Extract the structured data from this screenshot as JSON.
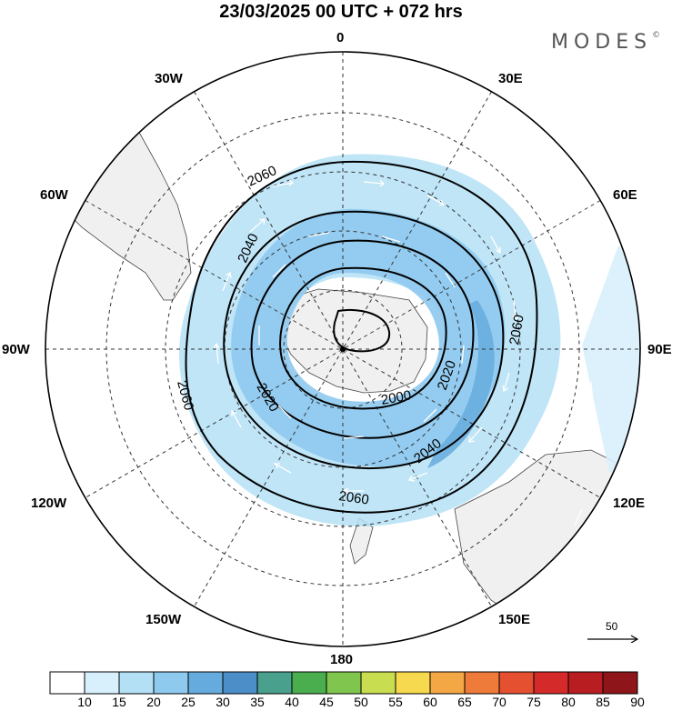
{
  "title": "23/03/2025  00 UTC  + 072 hrs",
  "brand": {
    "name": "MODES",
    "mark": "©"
  },
  "longitude_labels": {
    "n0": "0",
    "n30e": "30E",
    "n60e": "60E",
    "n90e": "90E",
    "n120e": "120E",
    "n150e": "150E",
    "n180": "180",
    "n150w": "150W",
    "n120w": "120W",
    "n90w": "90W",
    "n60w": "60W",
    "n30w": "30W"
  },
  "contours": {
    "c2000": "2000",
    "c2020a": "2020",
    "c2020b": "2020",
    "c2040a": "2040",
    "c2040b": "2040",
    "c2060a": "2060",
    "c2060b": "2060",
    "c2060c": "2060",
    "c2060d": "2060"
  },
  "reference_vector": {
    "value": "50"
  },
  "colorbar": {
    "ticks": [
      "10",
      "15",
      "20",
      "25",
      "30",
      "35",
      "40",
      "45",
      "50",
      "55",
      "60",
      "65",
      "70",
      "75",
      "80",
      "85",
      "90"
    ],
    "colors": [
      "#ffffff",
      "#d8f0fc",
      "#b4e0f6",
      "#8ec9ee",
      "#66abdd",
      "#4c8fc8",
      "#49a08c",
      "#4aae4f",
      "#80c64e",
      "#c8dd50",
      "#f6d94e",
      "#f4a845",
      "#ef7b3a",
      "#e45030",
      "#d42a2a",
      "#b81d22",
      "#8e161a"
    ]
  },
  "map_style": {
    "land": "#f0f0f0",
    "coast": "#444444",
    "grid": "#333333",
    "contour": "#000000",
    "wind_vector": "#ffffff"
  }
}
